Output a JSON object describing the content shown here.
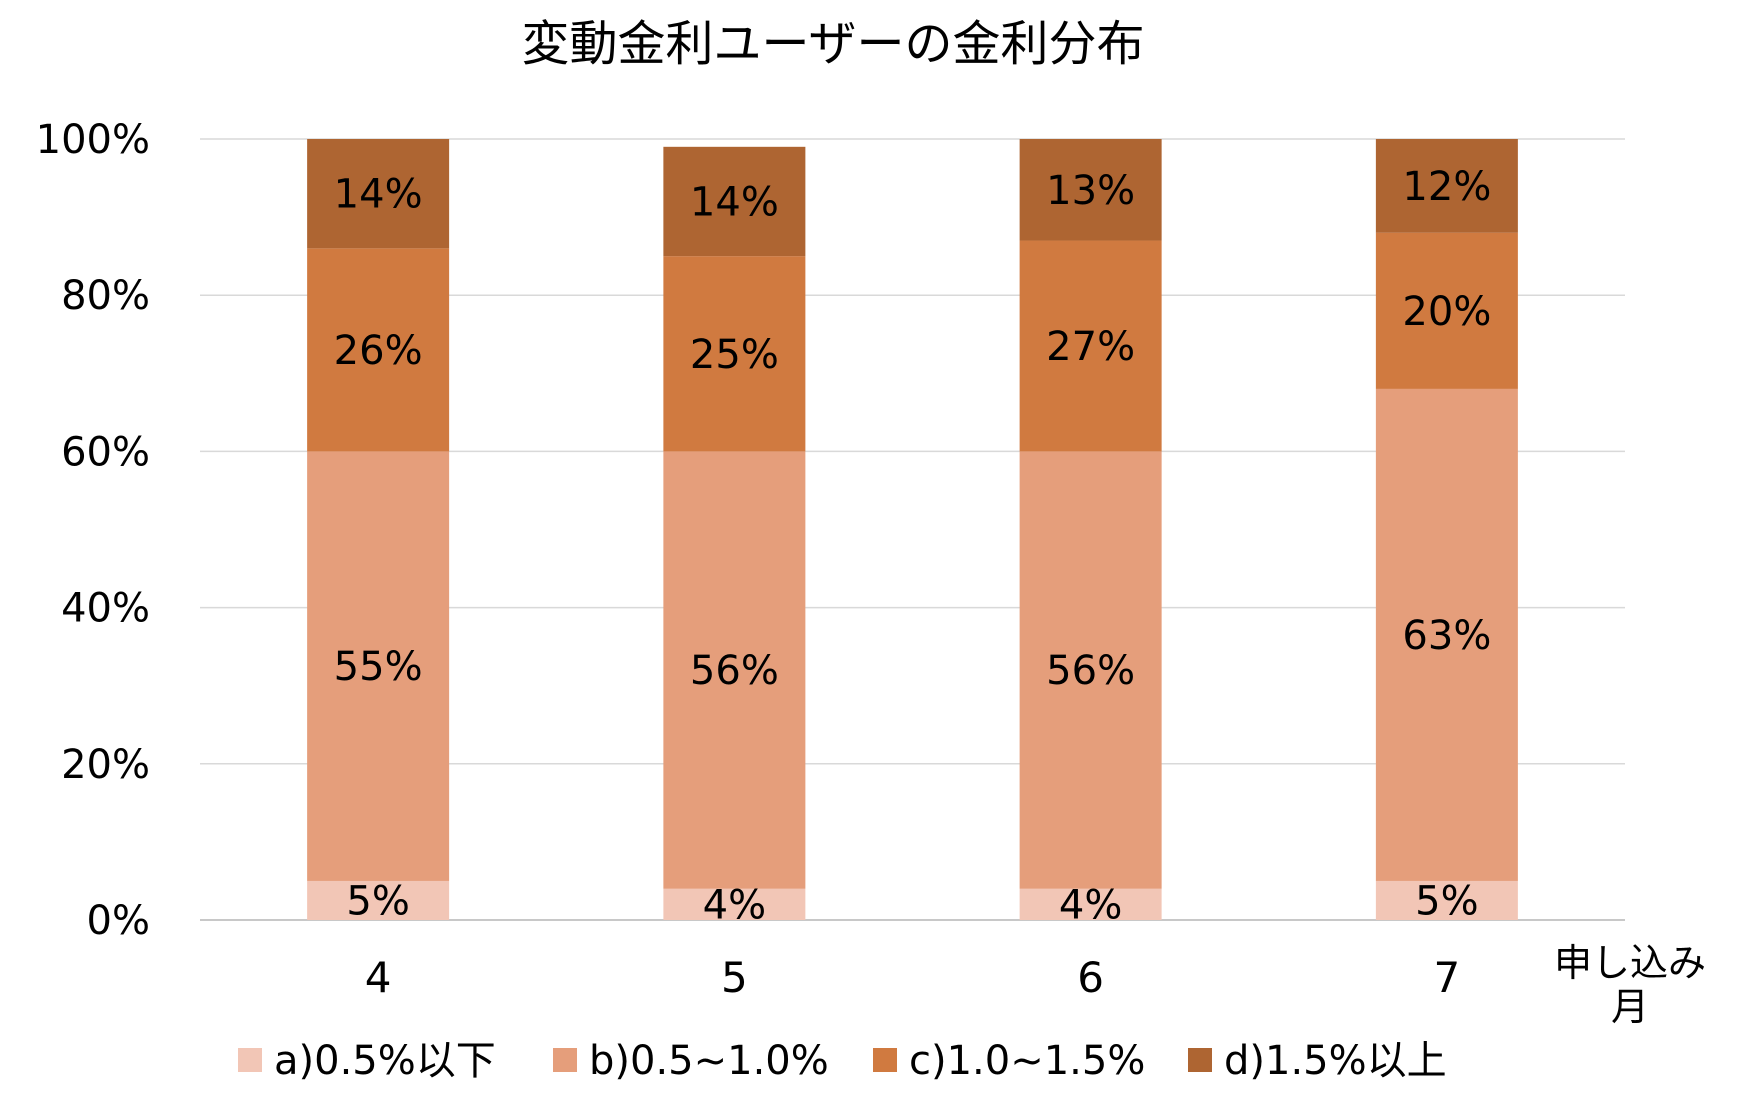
{
  "chart_data": {
    "type": "bar",
    "stacked": true,
    "title": "変動金利ユーザーの金利分布",
    "xlabel": "申し込み月",
    "ylabel": "",
    "ylim": [
      0,
      100
    ],
    "y_ticks": [
      "0%",
      "20%",
      "40%",
      "60%",
      "80%",
      "100%"
    ],
    "categories": [
      "4",
      "5",
      "6",
      "7"
    ],
    "series": [
      {
        "name": "a)0.5%以下",
        "color": "#F2C6B6",
        "values": [
          5,
          4,
          4,
          5
        ],
        "labels": [
          "5%",
          "4%",
          "4%",
          "5%"
        ]
      },
      {
        "name": "b)0.5~1.0%",
        "color": "#E59E7B",
        "values": [
          55,
          56,
          56,
          63
        ],
        "labels": [
          "55%",
          "56%",
          "56%",
          "63%"
        ]
      },
      {
        "name": "c)1.0~1.5%",
        "color": "#D07A40",
        "values": [
          26,
          25,
          27,
          20
        ],
        "labels": [
          "26%",
          "25%",
          "27%",
          "20%"
        ]
      },
      {
        "name": "d)1.5%以上",
        "color": "#AE6532",
        "values": [
          14,
          14,
          13,
          12
        ],
        "labels": [
          "14%",
          "14%",
          "13%",
          "12%"
        ]
      }
    ],
    "grid": true,
    "legend_position": "bottom"
  }
}
